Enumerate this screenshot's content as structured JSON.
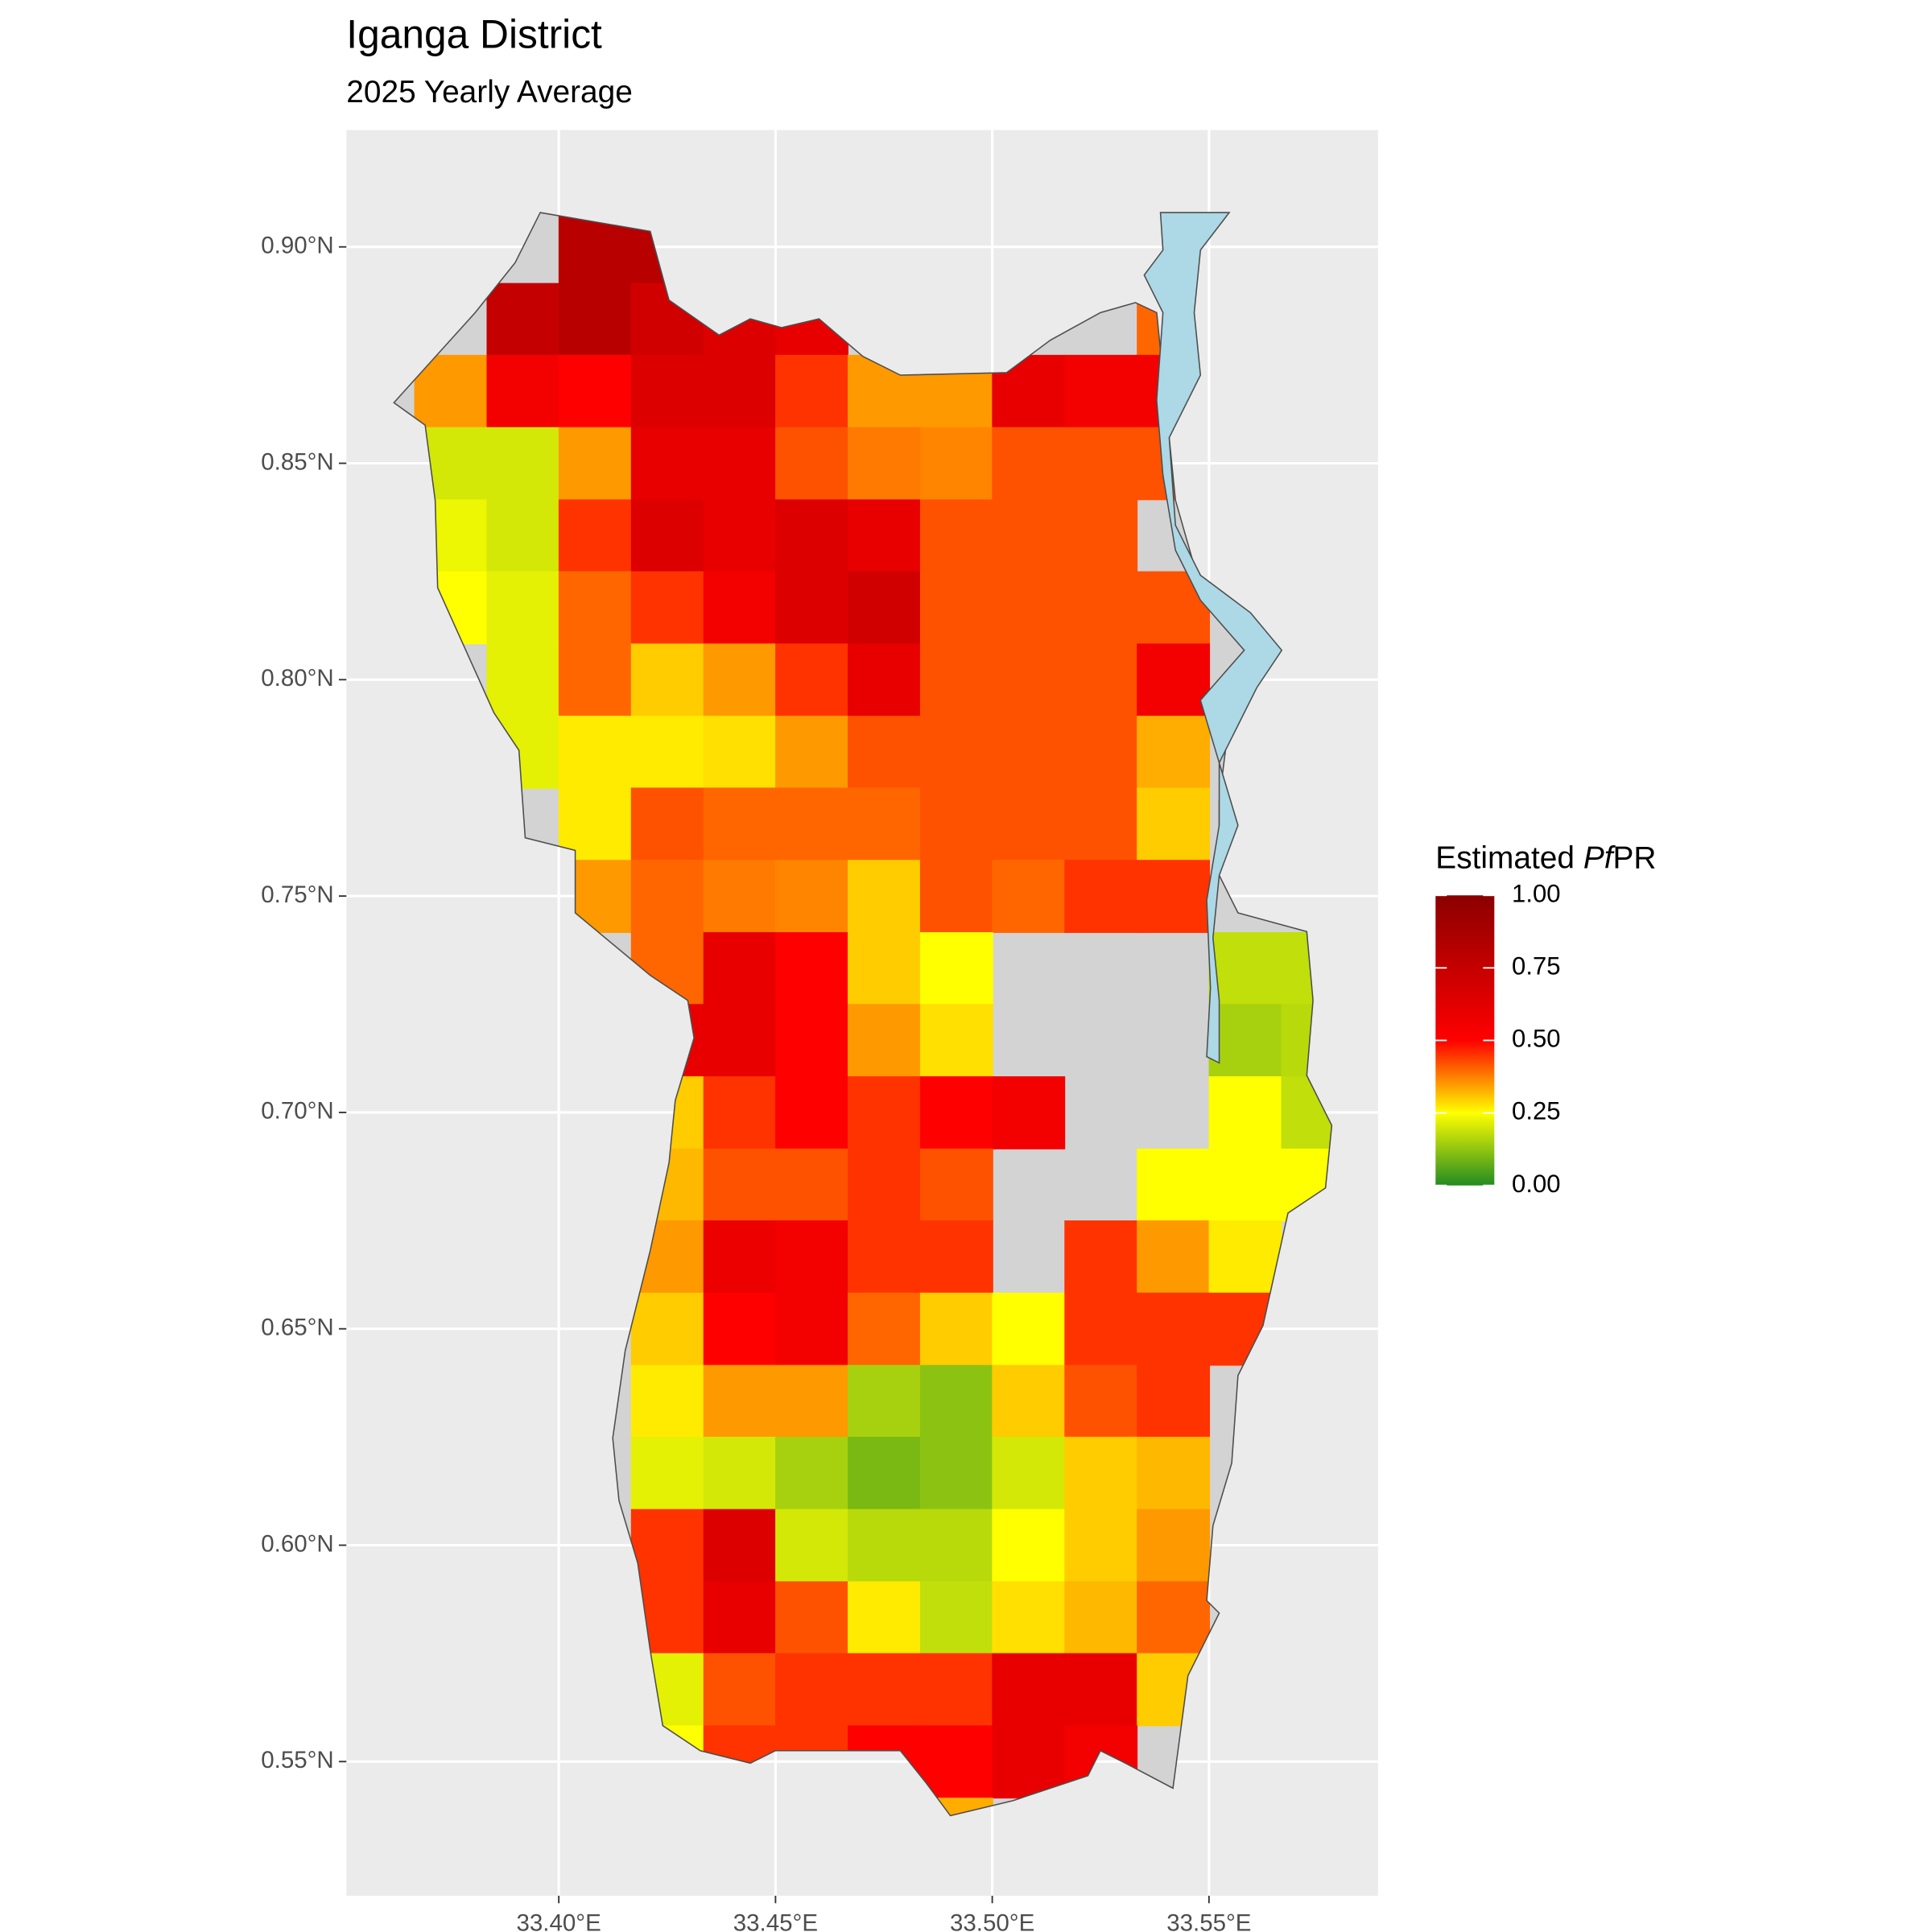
{
  "chart_data": {
    "type": "heatmap",
    "title": "Iganga District",
    "subtitle": "2025 Yearly Average",
    "legend_title": [
      "Estimated",
      "Pf",
      "PR"
    ],
    "xlim": [
      33.351,
      33.589
    ],
    "ylim": [
      0.519,
      0.927
    ],
    "xticks": [
      {
        "value": 33.4,
        "label": "33.40°E"
      },
      {
        "value": 33.45,
        "label": "33.45°E"
      },
      {
        "value": 33.5,
        "label": "33.50°E"
      },
      {
        "value": 33.55,
        "label": "33.55°E"
      }
    ],
    "yticks": [
      {
        "value": 0.55,
        "label": "0.55°N"
      },
      {
        "value": 0.6,
        "label": "0.60°N"
      },
      {
        "value": 0.65,
        "label": "0.65°N"
      },
      {
        "value": 0.7,
        "label": "0.70°N"
      },
      {
        "value": 0.75,
        "label": "0.75°N"
      },
      {
        "value": 0.8,
        "label": "0.80°N"
      },
      {
        "value": 0.85,
        "label": "0.85°N"
      },
      {
        "value": 0.9,
        "label": "0.90°N"
      }
    ],
    "grid": true,
    "colorbar_lim": [
      0,
      1
    ],
    "colorbar_ticks": [
      {
        "value": 0,
        "label": "0.00"
      },
      {
        "value": 0.25,
        "label": "0.25"
      },
      {
        "value": 0.5,
        "label": "0.50"
      },
      {
        "value": 0.75,
        "label": "0.75"
      },
      {
        "value": 1,
        "label": "1.00"
      }
    ],
    "color_stops": [
      {
        "value": 0,
        "color": "#228B22"
      },
      {
        "value": 0.25,
        "color": "#FFFF00"
      },
      {
        "value": 0.5,
        "color": "#FF0000"
      },
      {
        "value": 1,
        "color": "#8B0000"
      }
    ],
    "x": [
      33.375,
      33.3917,
      33.4083,
      33.425,
      33.4417,
      33.4583,
      33.475,
      33.4917,
      33.5083,
      33.525,
      33.5417,
      33.5583,
      33.575
    ],
    "y": [
      0.9,
      0.8833,
      0.8667,
      0.85,
      0.8333,
      0.8167,
      0.8,
      0.7833,
      0.7667,
      0.75,
      0.7333,
      0.7167,
      0.7,
      0.6833,
      0.6667,
      0.65,
      0.6333,
      0.6167,
      0.6,
      0.5833,
      0.5667,
      0.55,
      0.5333
    ],
    "values": [
      [
        null,
        null,
        0.8,
        0.8,
        null,
        null,
        null,
        null,
        null,
        null,
        null,
        null,
        null
      ],
      [
        null,
        0.75,
        0.8,
        0.7,
        0.65,
        0.6,
        null,
        null,
        null,
        null,
        0.4,
        null,
        null
      ],
      [
        0.35,
        0.55,
        0.5,
        0.65,
        0.65,
        0.45,
        0.35,
        0.35,
        0.6,
        0.55,
        0.55,
        null,
        null
      ],
      [
        0.2,
        0.2,
        0.35,
        0.6,
        0.6,
        0.42,
        0.38,
        0.37,
        0.42,
        0.42,
        0.42,
        null,
        null
      ],
      [
        0.23,
        0.2,
        0.45,
        0.65,
        0.6,
        0.65,
        0.6,
        0.42,
        0.42,
        0.42,
        null,
        null,
        null
      ],
      [
        0.25,
        0.22,
        0.4,
        0.45,
        0.55,
        0.65,
        0.7,
        0.42,
        0.42,
        0.42,
        0.42,
        null,
        null
      ],
      [
        null,
        0.22,
        0.4,
        0.3,
        0.35,
        0.45,
        0.6,
        0.42,
        0.42,
        0.42,
        0.55,
        null,
        null
      ],
      [
        null,
        0.22,
        0.27,
        0.27,
        0.28,
        0.35,
        0.42,
        0.42,
        0.42,
        0.42,
        0.33,
        null,
        null
      ],
      [
        null,
        null,
        0.27,
        0.42,
        0.4,
        0.4,
        0.4,
        0.42,
        0.42,
        0.42,
        0.3,
        null,
        null
      ],
      [
        null,
        null,
        0.35,
        0.4,
        0.38,
        0.37,
        0.3,
        0.42,
        0.4,
        0.45,
        0.45,
        null,
        null
      ],
      [
        null,
        null,
        null,
        0.4,
        0.6,
        0.5,
        0.3,
        0.25,
        null,
        null,
        null,
        0.18,
        0.18
      ],
      [
        null,
        null,
        null,
        0.6,
        0.6,
        0.5,
        0.35,
        0.28,
        null,
        null,
        null,
        0.15,
        0.17
      ],
      [
        null,
        null,
        null,
        0.3,
        0.45,
        0.5,
        0.45,
        0.5,
        0.55,
        null,
        null,
        0.25,
        0.18
      ],
      [
        null,
        null,
        null,
        0.32,
        0.42,
        0.42,
        0.45,
        0.42,
        null,
        null,
        0.25,
        0.25,
        0.25
      ],
      [
        null,
        null,
        null,
        0.35,
        0.58,
        0.55,
        0.45,
        0.45,
        null,
        0.45,
        0.35,
        0.27,
        null
      ],
      [
        null,
        null,
        null,
        0.3,
        0.5,
        0.55,
        0.4,
        0.3,
        0.25,
        0.45,
        0.45,
        0.45,
        null
      ],
      [
        null,
        null,
        null,
        0.27,
        0.35,
        0.35,
        0.15,
        0.12,
        0.3,
        0.42,
        0.45,
        null,
        null
      ],
      [
        null,
        null,
        null,
        0.22,
        0.2,
        0.15,
        0.1,
        0.12,
        0.2,
        0.3,
        0.32,
        null,
        null
      ],
      [
        null,
        null,
        null,
        0.45,
        0.65,
        0.2,
        0.17,
        0.17,
        0.25,
        0.3,
        0.35,
        null,
        null
      ],
      [
        null,
        null,
        null,
        0.45,
        0.6,
        0.42,
        0.27,
        0.18,
        0.28,
        0.32,
        0.4,
        null,
        null
      ],
      [
        null,
        null,
        null,
        0.22,
        0.42,
        0.45,
        0.45,
        0.45,
        0.6,
        0.6,
        0.3,
        null,
        null
      ],
      [
        null,
        null,
        null,
        0.25,
        0.45,
        0.45,
        0.5,
        0.5,
        0.6,
        0.55,
        null,
        null,
        null
      ],
      [
        null,
        null,
        null,
        null,
        null,
        null,
        null,
        0.33,
        null,
        null,
        null,
        null,
        null
      ]
    ]
  }
}
